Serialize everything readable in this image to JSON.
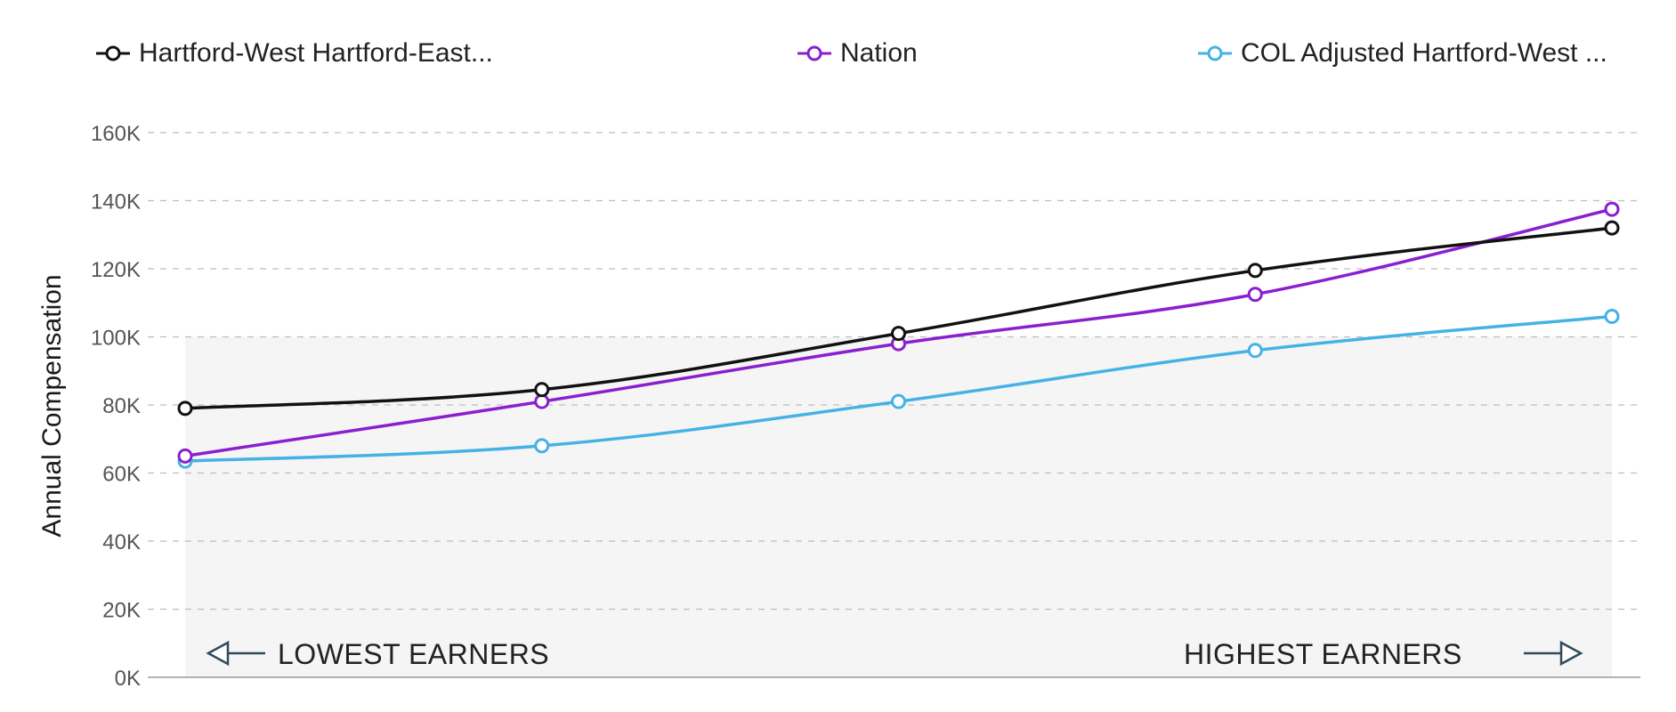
{
  "chart_data": {
    "type": "line",
    "ylabel": "Annual Compensation",
    "ylim": [
      0,
      160000
    ],
    "y_ticks": [
      "0K",
      "20K",
      "40K",
      "60K",
      "80K",
      "100K",
      "120K",
      "140K",
      "160K"
    ],
    "y_tick_values": [
      0,
      20000,
      40000,
      60000,
      80000,
      100000,
      120000,
      140000,
      160000
    ],
    "x_points": 5,
    "grid": true,
    "legend_position": "top",
    "series": [
      {
        "name": "Hartford-West Hartford-East...",
        "color": "#111111",
        "values": [
          79000,
          84500,
          101000,
          119500,
          132000
        ]
      },
      {
        "name": "Nation",
        "color": "#8A1FD0",
        "values": [
          65000,
          81000,
          98000,
          112500,
          137500
        ]
      },
      {
        "name": "COL Adjusted Hartford-West ...",
        "color": "#45B2E6",
        "values": [
          63500,
          68000,
          81000,
          96000,
          106000
        ]
      }
    ],
    "annotations": {
      "left": "LOWEST EARNERS",
      "right": "HIGHEST EARNERS"
    }
  }
}
